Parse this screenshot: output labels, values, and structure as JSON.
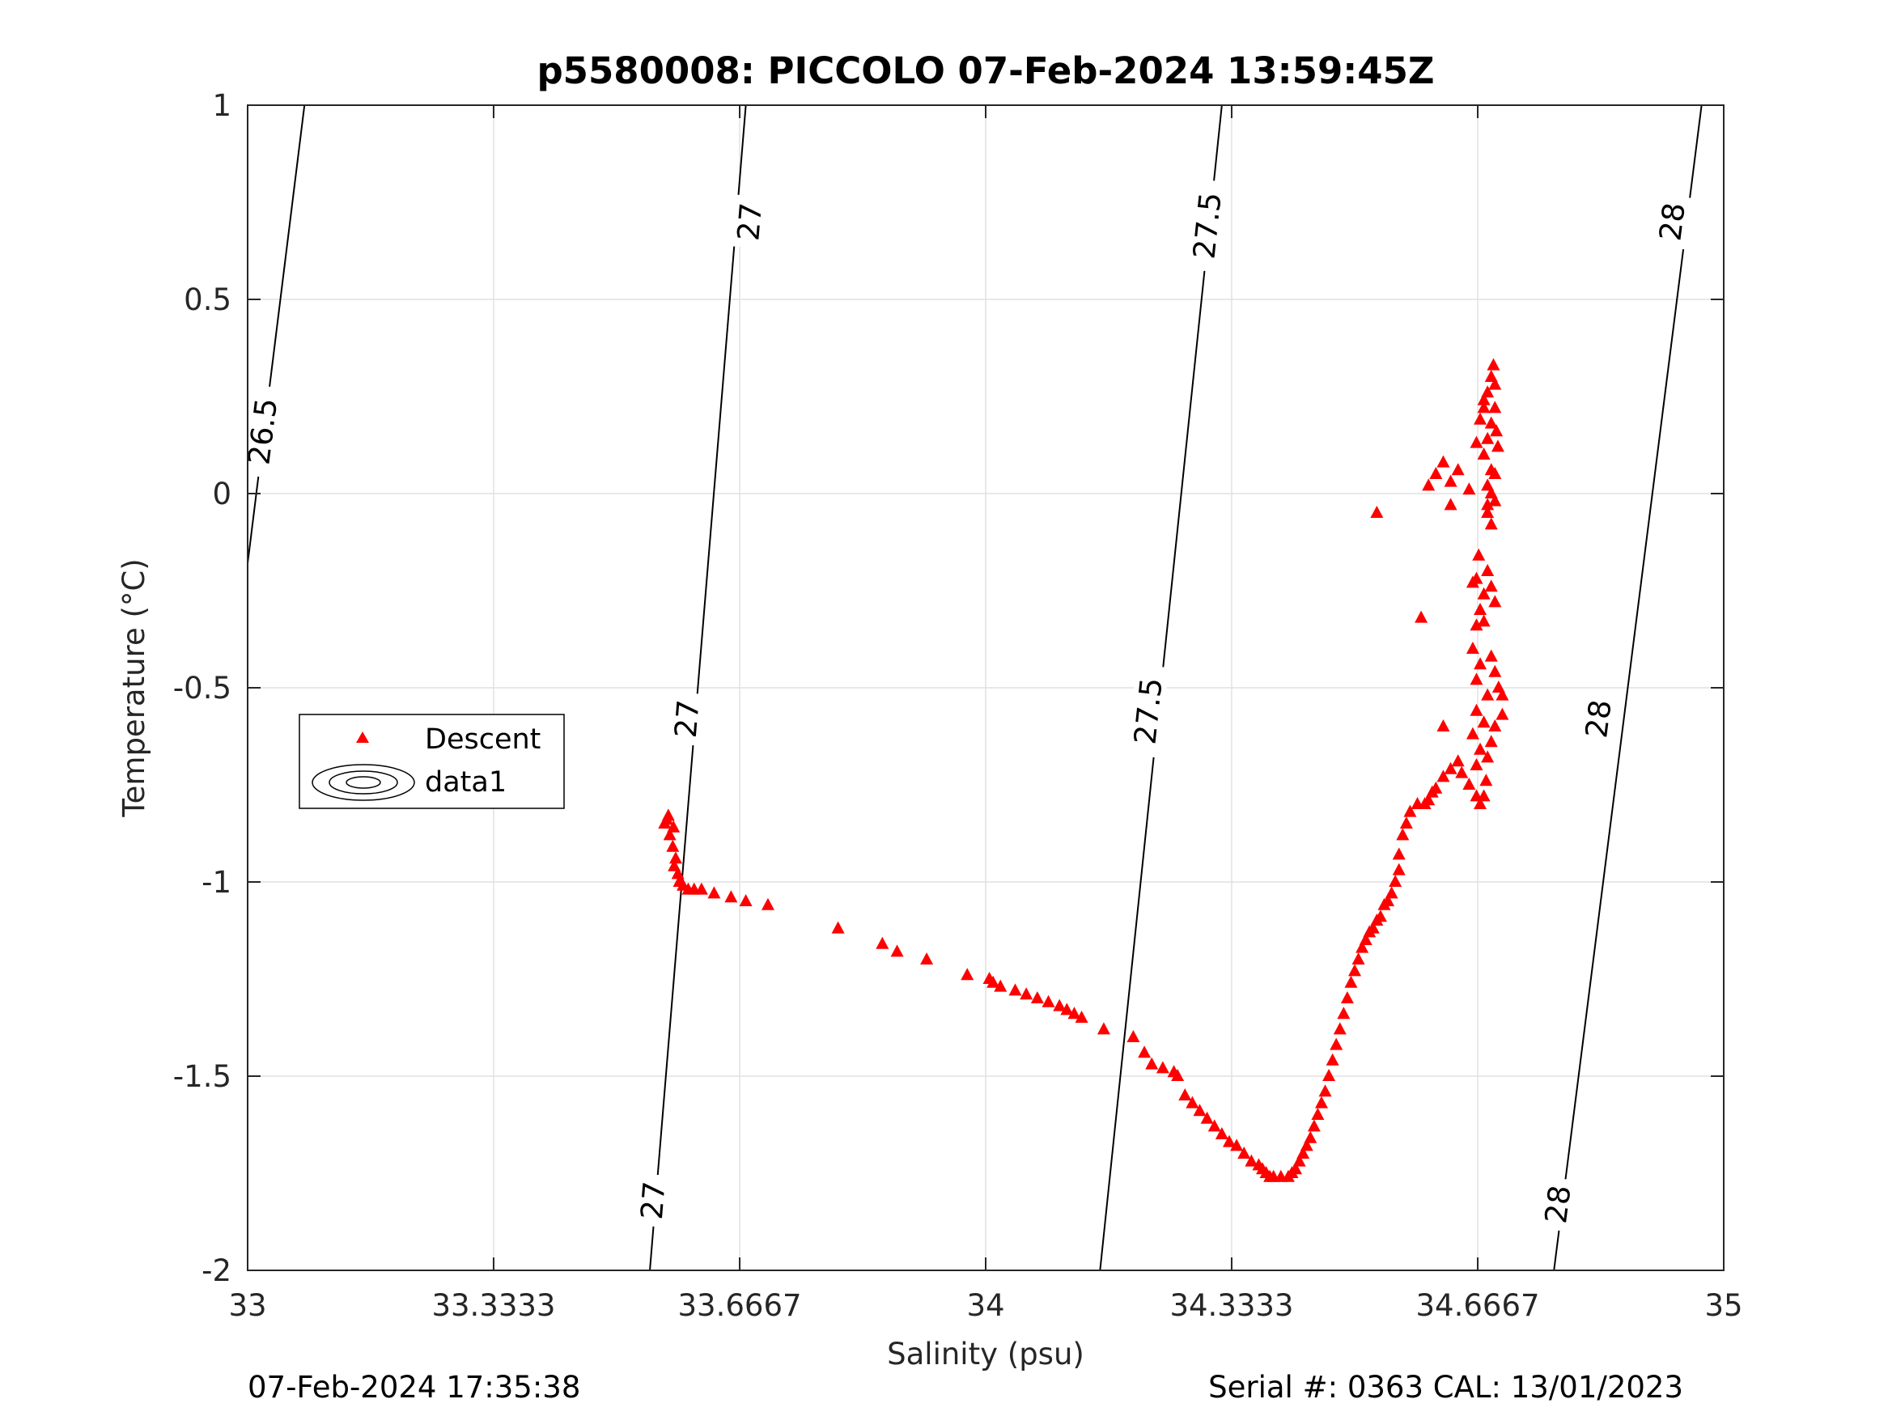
{
  "chart_data": {
    "type": "scatter",
    "title": "p5580008: PICCOLO 07-Feb-2024 13:59:45Z",
    "xlabel": "Salinity (psu)",
    "ylabel": "Temperature (°C)",
    "xlim": [
      33,
      35
    ],
    "ylim": [
      -2,
      1
    ],
    "xticks": [
      33,
      33.3333,
      33.6667,
      34,
      34.3333,
      34.6667,
      35
    ],
    "xtick_labels": [
      "33",
      "33.3333",
      "33.6667",
      "34",
      "34.3333",
      "34.6667",
      "35"
    ],
    "yticks": [
      -2,
      -1.5,
      -1,
      -0.5,
      0,
      0.5,
      1
    ],
    "ytick_labels": [
      "-2",
      "-1.5",
      "-1",
      "-0.5",
      "0",
      "0.5",
      "1"
    ],
    "grid": true,
    "legend_position": "left",
    "legend": [
      {
        "label": "Descent",
        "marker": "triangle",
        "color": "#ff0000"
      },
      {
        "label": "data1",
        "marker": "contour",
        "color": "#000000"
      }
    ],
    "contours": [
      {
        "level": "26.5",
        "line": [
          [
            33.0,
            -0.18
          ],
          [
            33.077,
            1.0
          ]
        ],
        "labels": [
          {
            "x": 33.02,
            "y": 0.16
          }
        ]
      },
      {
        "level": "27",
        "line": [
          [
            33.545,
            -2.0
          ],
          [
            33.675,
            1.0
          ]
        ],
        "labels": [
          {
            "x": 33.549,
            "y": -1.82
          },
          {
            "x": 33.595,
            "y": -0.58
          },
          {
            "x": 33.68,
            "y": 0.7
          }
        ]
      },
      {
        "level": "27.5",
        "line": [
          [
            34.155,
            -2.0
          ],
          [
            34.32,
            1.0
          ]
        ],
        "labels": [
          {
            "x": 34.22,
            "y": -0.56
          },
          {
            "x": 34.3,
            "y": 0.69
          }
        ]
      },
      {
        "level": "28",
        "line": [
          [
            34.77,
            -2.0
          ],
          [
            34.97,
            1.0
          ]
        ],
        "labels": [
          {
            "x": 34.775,
            "y": -1.83
          },
          {
            "x": 34.83,
            "y": -0.58
          },
          {
            "x": 34.93,
            "y": 0.7
          }
        ]
      }
    ],
    "series": [
      {
        "name": "Descent",
        "color": "#ff0000",
        "marker": "triangle",
        "points": [
          [
            33.57,
            -0.83
          ],
          [
            33.568,
            -0.84
          ],
          [
            33.565,
            -0.85
          ],
          [
            33.577,
            -0.86
          ],
          [
            33.572,
            -0.88
          ],
          [
            33.576,
            -0.91
          ],
          [
            33.58,
            -0.94
          ],
          [
            33.578,
            -0.96
          ],
          [
            33.583,
            -0.98
          ],
          [
            33.585,
            -1.0
          ],
          [
            33.59,
            -1.01
          ],
          [
            33.597,
            -1.02
          ],
          [
            33.605,
            -1.02
          ],
          [
            33.615,
            -1.02
          ],
          [
            33.632,
            -1.03
          ],
          [
            33.655,
            -1.04
          ],
          [
            33.675,
            -1.05
          ],
          [
            33.705,
            -1.06
          ],
          [
            33.8,
            -1.12
          ],
          [
            33.86,
            -1.16
          ],
          [
            33.88,
            -1.18
          ],
          [
            33.92,
            -1.2
          ],
          [
            33.975,
            -1.24
          ],
          [
            34.005,
            -1.25
          ],
          [
            34.01,
            -1.26
          ],
          [
            34.02,
            -1.27
          ],
          [
            34.04,
            -1.28
          ],
          [
            34.055,
            -1.29
          ],
          [
            34.07,
            -1.3
          ],
          [
            34.085,
            -1.31
          ],
          [
            34.1,
            -1.32
          ],
          [
            34.11,
            -1.33
          ],
          [
            34.12,
            -1.34
          ],
          [
            34.13,
            -1.35
          ],
          [
            34.16,
            -1.38
          ],
          [
            34.2,
            -1.4
          ],
          [
            34.215,
            -1.44
          ],
          [
            34.225,
            -1.47
          ],
          [
            34.24,
            -1.48
          ],
          [
            34.255,
            -1.49
          ],
          [
            34.26,
            -1.5
          ],
          [
            34.27,
            -1.55
          ],
          [
            34.28,
            -1.57
          ],
          [
            34.29,
            -1.59
          ],
          [
            34.3,
            -1.61
          ],
          [
            34.31,
            -1.63
          ],
          [
            34.32,
            -1.65
          ],
          [
            34.33,
            -1.67
          ],
          [
            34.34,
            -1.68
          ],
          [
            34.35,
            -1.7
          ],
          [
            34.36,
            -1.72
          ],
          [
            34.37,
            -1.73
          ],
          [
            34.375,
            -1.74
          ],
          [
            34.38,
            -1.75
          ],
          [
            34.385,
            -1.76
          ],
          [
            34.39,
            -1.76
          ],
          [
            34.4,
            -1.76
          ],
          [
            34.41,
            -1.76
          ],
          [
            34.415,
            -1.75
          ],
          [
            34.42,
            -1.74
          ],
          [
            34.425,
            -1.72
          ],
          [
            34.43,
            -1.7
          ],
          [
            34.435,
            -1.68
          ],
          [
            34.44,
            -1.66
          ],
          [
            34.445,
            -1.63
          ],
          [
            34.45,
            -1.6
          ],
          [
            34.455,
            -1.57
          ],
          [
            34.46,
            -1.54
          ],
          [
            34.465,
            -1.5
          ],
          [
            34.47,
            -1.46
          ],
          [
            34.475,
            -1.42
          ],
          [
            34.48,
            -1.38
          ],
          [
            34.485,
            -1.34
          ],
          [
            34.49,
            -1.3
          ],
          [
            34.495,
            -1.26
          ],
          [
            34.5,
            -1.23
          ],
          [
            34.505,
            -1.2
          ],
          [
            34.51,
            -1.17
          ],
          [
            34.515,
            -1.15
          ],
          [
            34.52,
            -1.13
          ],
          [
            34.525,
            -1.12
          ],
          [
            34.53,
            -1.1
          ],
          [
            34.535,
            -1.09
          ],
          [
            34.54,
            -1.06
          ],
          [
            34.545,
            -1.05
          ],
          [
            34.55,
            -1.03
          ],
          [
            34.555,
            -1.0
          ],
          [
            34.56,
            -0.97
          ],
          [
            34.56,
            -0.93
          ],
          [
            34.565,
            -0.88
          ],
          [
            34.57,
            -0.85
          ],
          [
            34.575,
            -0.82
          ],
          [
            34.585,
            -0.8
          ],
          [
            34.595,
            -0.8
          ],
          [
            34.6,
            -0.79
          ],
          [
            34.605,
            -0.77
          ],
          [
            34.61,
            -0.76
          ],
          [
            34.62,
            -0.73
          ],
          [
            34.63,
            -0.71
          ],
          [
            34.64,
            -0.69
          ],
          [
            34.645,
            -0.72
          ],
          [
            34.655,
            -0.75
          ],
          [
            34.665,
            -0.78
          ],
          [
            34.67,
            -0.8
          ],
          [
            34.675,
            -0.78
          ],
          [
            34.678,
            -0.74
          ],
          [
            34.665,
            -0.7
          ],
          [
            34.67,
            -0.66
          ],
          [
            34.66,
            -0.62
          ],
          [
            34.675,
            -0.59
          ],
          [
            34.665,
            -0.56
          ],
          [
            34.68,
            -0.52
          ],
          [
            34.665,
            -0.48
          ],
          [
            34.67,
            -0.44
          ],
          [
            34.685,
            -0.42
          ],
          [
            34.69,
            -0.46
          ],
          [
            34.695,
            -0.5
          ],
          [
            34.7,
            -0.52
          ],
          [
            34.7,
            -0.57
          ],
          [
            34.69,
            -0.6
          ],
          [
            34.685,
            -0.64
          ],
          [
            34.68,
            -0.68
          ],
          [
            34.675,
            -0.33
          ],
          [
            34.67,
            -0.3
          ],
          [
            34.675,
            -0.26
          ],
          [
            34.665,
            -0.22
          ],
          [
            34.668,
            -0.16
          ],
          [
            34.68,
            -0.2
          ],
          [
            34.685,
            -0.24
          ],
          [
            34.69,
            -0.28
          ],
          [
            34.68,
            -0.05
          ],
          [
            34.685,
            -0.08
          ],
          [
            34.69,
            -0.02
          ],
          [
            34.68,
            0.02
          ],
          [
            34.685,
            0.06
          ],
          [
            34.675,
            0.1
          ],
          [
            34.68,
            0.14
          ],
          [
            34.685,
            0.18
          ],
          [
            34.675,
            0.22
          ],
          [
            34.68,
            0.26
          ],
          [
            34.685,
            0.3
          ],
          [
            34.688,
            0.33
          ],
          [
            34.69,
            0.28
          ],
          [
            34.69,
            0.22
          ],
          [
            34.692,
            0.16
          ],
          [
            34.694,
            0.12
          ],
          [
            34.69,
            0.05
          ],
          [
            34.685,
            0.0
          ],
          [
            34.68,
            -0.03
          ],
          [
            34.675,
            0.24
          ],
          [
            34.67,
            0.19
          ],
          [
            34.665,
            0.13
          ],
          [
            34.64,
            0.06
          ],
          [
            34.63,
            0.03
          ],
          [
            34.62,
            0.08
          ],
          [
            34.61,
            0.05
          ],
          [
            34.6,
            0.02
          ],
          [
            34.63,
            -0.03
          ],
          [
            34.655,
            0.01
          ],
          [
            34.665,
            -0.34
          ],
          [
            34.66,
            -0.23
          ],
          [
            34.66,
            -0.4
          ],
          [
            34.62,
            -0.6
          ],
          [
            34.59,
            -0.32
          ],
          [
            34.53,
            -0.05
          ]
        ]
      }
    ]
  },
  "footer": {
    "timestamp": "07-Feb-2024 17:35:38",
    "serial_cal": "Serial #: 0363  CAL: 13/01/2023"
  }
}
